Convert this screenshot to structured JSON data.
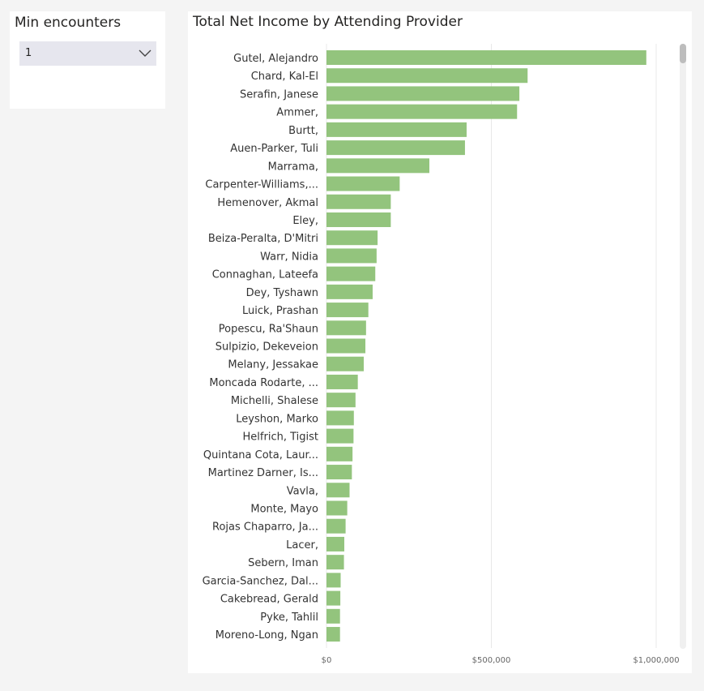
{
  "slicer": {
    "title": "Min encounters",
    "selected_value": "1",
    "chevron_icon": "chevron-down-icon"
  },
  "chart_data": {
    "type": "bar",
    "orientation": "horizontal",
    "title": "Total Net Income by Attending Provider",
    "xlabel": "",
    "ylabel": "",
    "xlim": [
      0,
      1000000
    ],
    "x_ticks": [
      "$0",
      "$500,000",
      "$1,000,000"
    ],
    "grid": true,
    "bar_color": "#93c47d",
    "categories": [
      "Gutel, Alejandro",
      "Chard, Kal-El",
      "Serafin, Janese",
      "Ammer,",
      "Burtt,",
      "Auen-Parker, Tuli",
      "Marrama,",
      "Carpenter-Williams,...",
      "Hemenover, Akmal",
      "Eley,",
      "Beiza-Peralta, D'Mitri",
      "Warr, Nidia",
      "Connaghan, Lateefa",
      "Dey, Tyshawn",
      "Luick, Prashan",
      "Popescu, Ra'Shaun",
      "Sulpizio, Dekeveion",
      "Melany, Jessakae",
      "Moncada Rodarte, ...",
      "Michelli, Shalese",
      "Leyshon, Marko",
      "Helfrich, Tigist",
      "Quintana Cota, Laur...",
      "Martinez Darner, Is...",
      "Vavla,",
      "Monte, Mayo",
      "Rojas Chaparro, Ja...",
      "Lacer,",
      "Sebern, Iman",
      "Garcia-Sanchez, Dal...",
      "Cakebread, Gerald",
      "Pyke, Tahlil",
      "Moreno-Long, Ngan"
    ],
    "values": [
      970000,
      610000,
      585000,
      578000,
      425000,
      420000,
      312000,
      222000,
      195000,
      195000,
      155000,
      152000,
      148000,
      140000,
      127000,
      120000,
      118000,
      113000,
      95000,
      88000,
      83000,
      82000,
      79000,
      77000,
      70000,
      63000,
      58000,
      54000,
      53000,
      43000,
      42000,
      41000,
      41000
    ]
  },
  "scrollbar": {
    "position": 0
  }
}
